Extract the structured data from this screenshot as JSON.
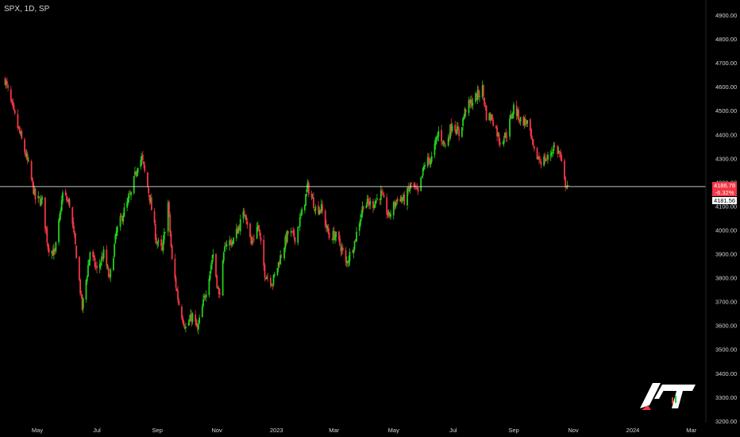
{
  "header": {
    "symbol_label": "SPX, 1D, SP"
  },
  "colors": {
    "up": "#22d11b",
    "down": "#f23645",
    "background": "#000000",
    "text": "#d1d4dc",
    "level_line": "#ffffff"
  },
  "price_tags": {
    "last_price": "4186.78",
    "change": "-6.32%",
    "level": "4181.56"
  },
  "chart_data": {
    "type": "candlestick",
    "title": "",
    "y_ticks": [
      "4900.00",
      "4800.00",
      "4700.00",
      "4600.00",
      "4500.00",
      "4400.00",
      "4300.00",
      "4200.00",
      "4100.00",
      "4000.00",
      "3900.00",
      "3800.00",
      "3700.00",
      "3600.00",
      "3500.00",
      "3400.00",
      "3300.00",
      "3200.00"
    ],
    "y_tick_values": [
      4900,
      4800,
      4700,
      4600,
      4500,
      4400,
      4300,
      4200,
      4100,
      4000,
      3900,
      3800,
      3700,
      3600,
      3500,
      3400,
      3300,
      3200
    ],
    "ylim": [
      3170,
      4935
    ],
    "x_ticks": [
      {
        "label": "May",
        "date": "2022-05-01"
      },
      {
        "label": "Jul",
        "date": "2022-07-01"
      },
      {
        "label": "Sep",
        "date": "2022-09-01"
      },
      {
        "label": "Nov",
        "date": "2022-11-01"
      },
      {
        "label": "2023",
        "date": "2023-01-01"
      },
      {
        "label": "Mar",
        "date": "2023-03-01"
      },
      {
        "label": "May",
        "date": "2023-05-01"
      },
      {
        "label": "Jul",
        "date": "2023-07-01"
      },
      {
        "label": "Sep",
        "date": "2023-09-01"
      },
      {
        "label": "Nov",
        "date": "2023-11-01"
      },
      {
        "label": "2024",
        "date": "2024-01-01"
      },
      {
        "label": "Mar",
        "date": "2024-03-01"
      }
    ],
    "horizontal_level": 4181.56,
    "grid": false,
    "close_path": [
      [
        "2022-03-29",
        4630
      ],
      [
        "2022-04-06",
        4500
      ],
      [
        "2022-04-14",
        4390
      ],
      [
        "2022-04-22",
        4270
      ],
      [
        "2022-04-29",
        4130
      ],
      [
        "2022-05-06",
        4120
      ],
      [
        "2022-05-12",
        3930
      ],
      [
        "2022-05-19",
        3900
      ],
      [
        "2022-05-27",
        4150
      ],
      [
        "2022-06-03",
        4110
      ],
      [
        "2022-06-10",
        3900
      ],
      [
        "2022-06-16",
        3670
      ],
      [
        "2022-06-24",
        3910
      ],
      [
        "2022-07-01",
        3830
      ],
      [
        "2022-07-08",
        3900
      ],
      [
        "2022-07-14",
        3790
      ],
      [
        "2022-07-21",
        3990
      ],
      [
        "2022-07-28",
        4070
      ],
      [
        "2022-08-05",
        4150
      ],
      [
        "2022-08-12",
        4280
      ],
      [
        "2022-08-16",
        4300
      ],
      [
        "2022-08-24",
        4140
      ],
      [
        "2022-08-31",
        3955
      ],
      [
        "2022-09-06",
        3910
      ],
      [
        "2022-09-12",
        4110
      ],
      [
        "2022-09-16",
        3870
      ],
      [
        "2022-09-23",
        3690
      ],
      [
        "2022-09-30",
        3590
      ],
      [
        "2022-10-07",
        3640
      ],
      [
        "2022-10-12",
        3580
      ],
      [
        "2022-10-21",
        3750
      ],
      [
        "2022-10-28",
        3900
      ],
      [
        "2022-11-03",
        3720
      ],
      [
        "2022-11-10",
        3950
      ],
      [
        "2022-11-17",
        3950
      ],
      [
        "2022-11-30",
        4080
      ],
      [
        "2022-12-06",
        3940
      ],
      [
        "2022-12-13",
        4020
      ],
      [
        "2022-12-20",
        3820
      ],
      [
        "2022-12-28",
        3780
      ],
      [
        "2023-01-06",
        3900
      ],
      [
        "2023-01-13",
        3990
      ],
      [
        "2023-01-20",
        3970
      ],
      [
        "2023-01-27",
        4070
      ],
      [
        "2023-02-02",
        4180
      ],
      [
        "2023-02-10",
        4090
      ],
      [
        "2023-02-16",
        4090
      ],
      [
        "2023-02-24",
        3970
      ],
      [
        "2023-03-02",
        3980
      ],
      [
        "2023-03-09",
        3920
      ],
      [
        "2023-03-13",
        3855
      ],
      [
        "2023-03-22",
        3950
      ],
      [
        "2023-03-31",
        4110
      ],
      [
        "2023-04-10",
        4110
      ],
      [
        "2023-04-18",
        4150
      ],
      [
        "2023-04-26",
        4055
      ],
      [
        "2023-05-05",
        4135
      ],
      [
        "2023-05-12",
        4125
      ],
      [
        "2023-05-19",
        4190
      ],
      [
        "2023-05-26",
        4150
      ],
      [
        "2023-06-02",
        4280
      ],
      [
        "2023-06-09",
        4300
      ],
      [
        "2023-06-16",
        4410
      ],
      [
        "2023-06-23",
        4350
      ],
      [
        "2023-06-30",
        4450
      ],
      [
        "2023-07-07",
        4400
      ],
      [
        "2023-07-14",
        4510
      ],
      [
        "2023-07-21",
        4540
      ],
      [
        "2023-07-31",
        4590
      ],
      [
        "2023-08-04",
        4480
      ],
      [
        "2023-08-10",
        4470
      ],
      [
        "2023-08-18",
        4370
      ],
      [
        "2023-08-25",
        4405
      ],
      [
        "2023-09-01",
        4515
      ],
      [
        "2023-09-08",
        4460
      ],
      [
        "2023-09-15",
        4450
      ],
      [
        "2023-09-22",
        4320
      ],
      [
        "2023-09-29",
        4290
      ],
      [
        "2023-10-06",
        4300
      ],
      [
        "2023-10-12",
        4350
      ],
      [
        "2023-10-18",
        4320
      ],
      [
        "2023-10-23",
        4200
      ],
      [
        "2023-10-27",
        4186.78
      ]
    ]
  }
}
